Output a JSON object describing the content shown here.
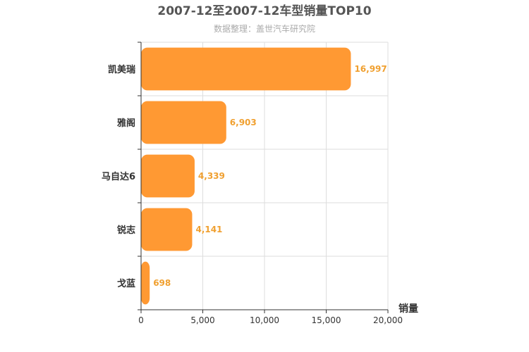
{
  "chart_data": {
    "type": "bar",
    "orientation": "horizontal",
    "title": "2007-12至2007-12车型销量TOP10",
    "subtitle": "数据整理：盖世汽车研究院",
    "xlabel": "销量",
    "ylabel": "",
    "categories": [
      "凯美瑞",
      "雅阁",
      "马自达6",
      "锐志",
      "戈蓝"
    ],
    "values": [
      16997,
      6903,
      4339,
      4141,
      698
    ],
    "value_labels": [
      "16,997",
      "6,903",
      "4,339",
      "4,141",
      "698"
    ],
    "xlim": [
      0,
      20000
    ],
    "x_ticks": [
      0,
      5000,
      10000,
      15000,
      20000
    ],
    "x_tick_labels": [
      "0",
      "5,000",
      "10,000",
      "15,000",
      "20,000"
    ],
    "grid": true,
    "colors": {
      "bar": "#ff9933",
      "value_label": "#f0a030",
      "grid": "#dddddd",
      "axis": "#333333"
    }
  }
}
